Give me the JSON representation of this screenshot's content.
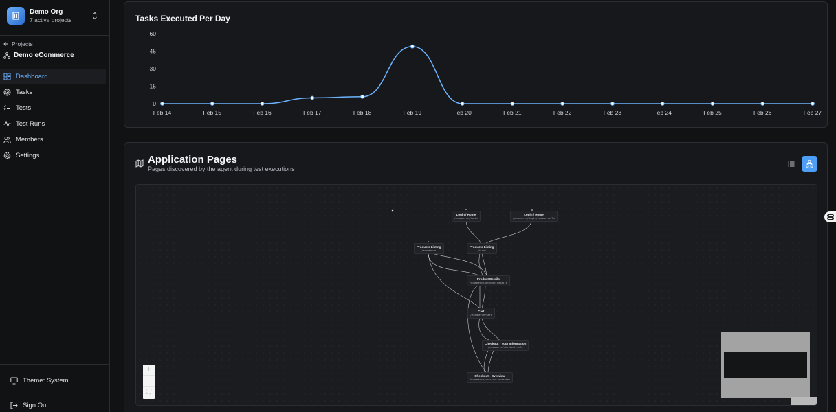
{
  "org": {
    "name": "Demo Org",
    "subtitle": "7 active projects"
  },
  "sidebar": {
    "back_label": "Projects",
    "project_name": "Demo eCommerce",
    "items": [
      {
        "label": "Dashboard",
        "icon": "dashboard-icon",
        "active": true
      },
      {
        "label": "Tasks",
        "icon": "target-icon"
      },
      {
        "label": "Tests",
        "icon": "list-checks-icon"
      },
      {
        "label": "Test Runs",
        "icon": "activity-icon"
      },
      {
        "label": "Members",
        "icon": "users-icon"
      },
      {
        "label": "Settings",
        "icon": "gear-icon"
      }
    ],
    "theme_label": "Theme: System",
    "signout_label": "Sign Out"
  },
  "chart_data": {
    "type": "line",
    "title": "Tasks Executed Per Day",
    "categories": [
      "Feb 14",
      "Feb 15",
      "Feb 16",
      "Feb 17",
      "Feb 18",
      "Feb 19",
      "Feb 20",
      "Feb 21",
      "Feb 22",
      "Feb 23",
      "Feb 24",
      "Feb 25",
      "Feb 26",
      "Feb 27"
    ],
    "series": [
      {
        "values": [
          0,
          0,
          0,
          5,
          6,
          49,
          0,
          0,
          0,
          0,
          0,
          0,
          0,
          0
        ]
      }
    ],
    "yticks": [
      0,
      15,
      30,
      45,
      60
    ],
    "ylim": [
      0,
      60
    ],
    "color": "#6cb4ff",
    "grid": false
  },
  "pages": {
    "title": "Application Pages",
    "subtitle": "Pages discovered by the agent during test executions",
    "nodes": [
      {
        "title": "Login / Home",
        "path": "/ecommerce/login"
      },
      {
        "title": "Login / Home",
        "path": "/ecommerce/login/ecommerce/l…"
      },
      {
        "title": "Products Listing",
        "path": "/ecommerce"
      },
      {
        "title": "Products Listing",
        "path": "/blank"
      },
      {
        "title": "Product Details",
        "path": "/ecommerce/product-details"
      },
      {
        "title": "Cart",
        "path": "/ecommerce/cart"
      },
      {
        "title": "Checkout - Your Information",
        "path": "/ecommerce/checkout-info"
      },
      {
        "title": "Checkout - Overview",
        "path": "/ecommerce/checkout-overview"
      }
    ],
    "controls": [
      "+",
      "−",
      "⛶"
    ]
  }
}
